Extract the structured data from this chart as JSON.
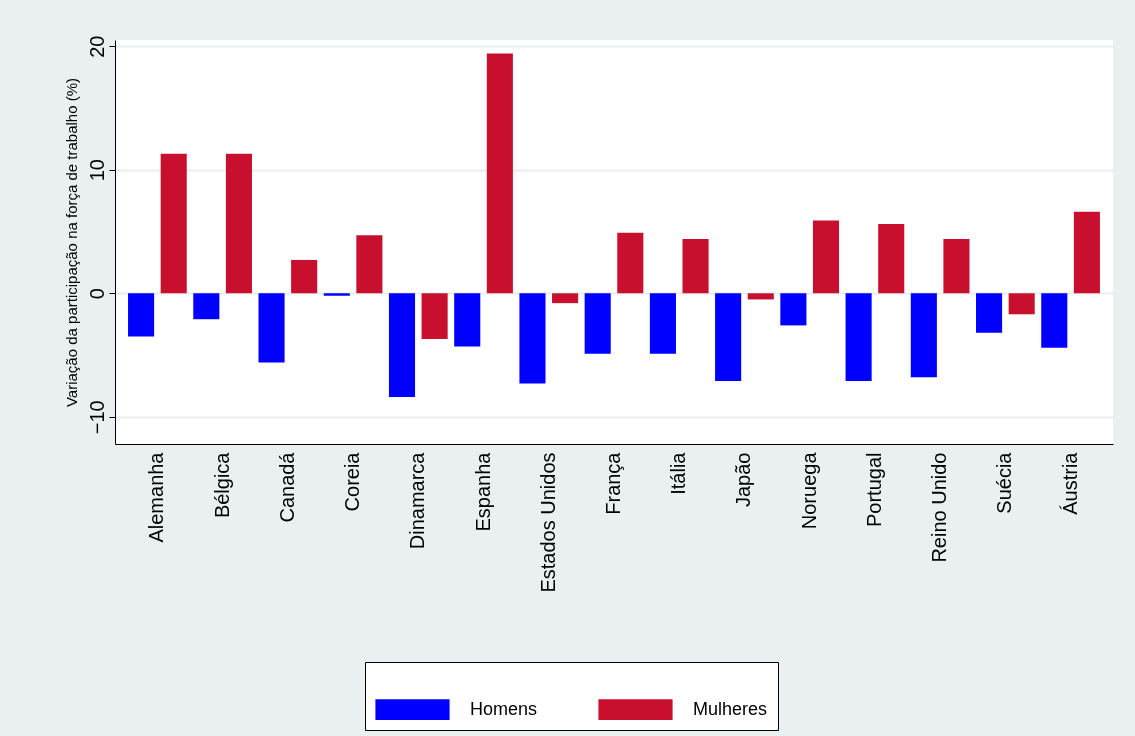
{
  "chart_data": {
    "type": "bar",
    "categories": [
      "Alemanha",
      "Bélgica",
      "Canadá",
      "Coreia",
      "Dinamarca",
      "Espanha",
      "Estados Unidos",
      "França",
      "Itália",
      "Japão",
      "Noruega",
      "Portugal",
      "Reino Unido",
      "Suécia",
      "Áustria"
    ],
    "series": [
      {
        "name": "Homens",
        "color": "#0000ff",
        "values": [
          -3.5,
          -2.1,
          -5.6,
          -0.2,
          -8.4,
          -4.3,
          -7.3,
          -4.9,
          -4.9,
          -7.1,
          -2.6,
          -7.1,
          -6.8,
          -3.2,
          -4.4
        ]
      },
      {
        "name": "Mulheres",
        "color": "#c8102e",
        "values": [
          11.3,
          11.3,
          2.7,
          4.7,
          -3.7,
          19.4,
          -0.8,
          4.9,
          4.4,
          -0.5,
          5.9,
          5.6,
          4.4,
          -1.7,
          6.6
        ]
      }
    ],
    "ylabel": "Variação da participação na força de trabalho (%)",
    "ylim": [
      -12.2,
      20.5
    ],
    "yticks": [
      -10,
      0,
      10,
      20
    ],
    "grid": "y",
    "legend": "bottom"
  }
}
